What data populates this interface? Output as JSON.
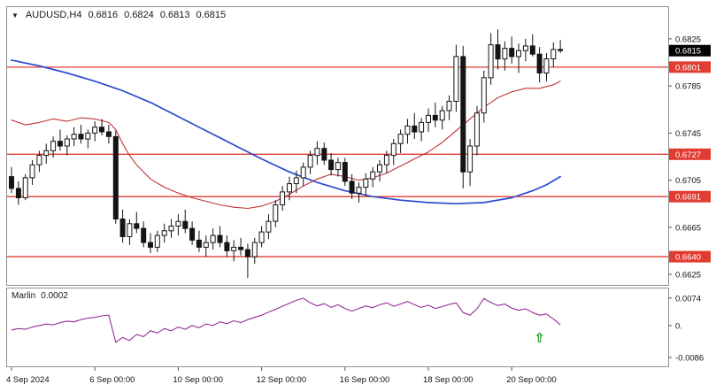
{
  "colors": {
    "bg": "#ffffff",
    "panel_border": "#8f8f8f",
    "bull": "#ffffff",
    "bear": "#141414",
    "wick": "#141414",
    "ma_fast": "#c03434",
    "ma_slow": "#2b4bd0",
    "hline": "#e03c31",
    "indicator": "#952d95",
    "price_box_black": "#000000",
    "price_box_red": "#e03c31",
    "axis_text": "#111111",
    "arrow": "#2fa12f"
  },
  "header": {
    "symbol": "AUDUSD,H4",
    "open": "0.6816",
    "high": "0.6824",
    "low": "0.6813",
    "close": "0.6815",
    "collapse_glyph": "▼"
  },
  "indicator_label": {
    "name": "Marlin",
    "value": "0.0002"
  },
  "chart_data": {
    "type": "candlestick",
    "symbol": "AUDUSD",
    "timeframe": "H4",
    "price_range": [
      0.6616,
      0.6852
    ],
    "grid": "off",
    "hlines": [
      0.6801,
      0.6727,
      0.6691,
      0.664
    ],
    "price_axis": {
      "plain": [
        "0.6825",
        "0.6785",
        "0.6745",
        "0.6705",
        "0.6665",
        "0.6625"
      ],
      "red_boxed": [
        "0.6801",
        "0.6727",
        "0.6691",
        "0.6640"
      ],
      "black_boxed": [
        "0.6815"
      ]
    },
    "x_axis": {
      "labels": [
        {
          "i": 0,
          "text": "4 Sep 2024"
        },
        {
          "i": 12,
          "text": "6 Sep 00:00"
        },
        {
          "i": 24,
          "text": "10 Sep 00:00"
        },
        {
          "i": 36,
          "text": "12 Sep 00:00"
        },
        {
          "i": 48,
          "text": "16 Sep 00:00"
        },
        {
          "i": 60,
          "text": "18 Sep 00:00"
        },
        {
          "i": 72,
          "text": "20 Sep 00:00"
        }
      ]
    },
    "candles": [
      [
        0.6708,
        0.6716,
        0.6694,
        0.6698
      ],
      [
        0.6698,
        0.6704,
        0.6684,
        0.669
      ],
      [
        0.669,
        0.671,
        0.6688,
        0.6707
      ],
      [
        0.6707,
        0.6722,
        0.6701,
        0.6718
      ],
      [
        0.6718,
        0.673,
        0.6712,
        0.6726
      ],
      [
        0.6726,
        0.6736,
        0.6719,
        0.673
      ],
      [
        0.673,
        0.6742,
        0.6724,
        0.6738
      ],
      [
        0.6738,
        0.6748,
        0.673,
        0.6734
      ],
      [
        0.6734,
        0.6743,
        0.6726,
        0.674
      ],
      [
        0.674,
        0.675,
        0.6734,
        0.6744
      ],
      [
        0.6744,
        0.6752,
        0.6736,
        0.674
      ],
      [
        0.674,
        0.6748,
        0.6732,
        0.6745
      ],
      [
        0.6745,
        0.6755,
        0.6738,
        0.675
      ],
      [
        0.675,
        0.6757,
        0.6743,
        0.6746
      ],
      [
        0.6746,
        0.6752,
        0.6736,
        0.6742
      ],
      [
        0.6742,
        0.6747,
        0.6668,
        0.6672
      ],
      [
        0.6672,
        0.668,
        0.6652,
        0.6657
      ],
      [
        0.6657,
        0.6672,
        0.665,
        0.6668
      ],
      [
        0.6668,
        0.6678,
        0.666,
        0.6664
      ],
      [
        0.6664,
        0.667,
        0.6648,
        0.6652
      ],
      [
        0.6652,
        0.666,
        0.6643,
        0.6648
      ],
      [
        0.6648,
        0.6662,
        0.6644,
        0.6658
      ],
      [
        0.6658,
        0.6668,
        0.6652,
        0.6662
      ],
      [
        0.6662,
        0.6672,
        0.6656,
        0.6666
      ],
      [
        0.6666,
        0.6676,
        0.6658,
        0.667
      ],
      [
        0.667,
        0.668,
        0.666,
        0.6664
      ],
      [
        0.6664,
        0.667,
        0.665,
        0.6654
      ],
      [
        0.6654,
        0.6662,
        0.6644,
        0.6648
      ],
      [
        0.6648,
        0.6658,
        0.664,
        0.6652
      ],
      [
        0.6652,
        0.6664,
        0.6646,
        0.6658
      ],
      [
        0.6658,
        0.6666,
        0.6648,
        0.6652
      ],
      [
        0.6652,
        0.6658,
        0.664,
        0.6645
      ],
      [
        0.6645,
        0.6654,
        0.6636,
        0.6648
      ],
      [
        0.6648,
        0.6656,
        0.6641,
        0.6646
      ],
      [
        0.6646,
        0.6651,
        0.6622,
        0.664
      ],
      [
        0.664,
        0.6656,
        0.6634,
        0.6652
      ],
      [
        0.6652,
        0.6666,
        0.6648,
        0.6661
      ],
      [
        0.6661,
        0.6676,
        0.6655,
        0.667
      ],
      [
        0.667,
        0.6688,
        0.6665,
        0.6684
      ],
      [
        0.6684,
        0.67,
        0.6679,
        0.6695
      ],
      [
        0.6695,
        0.6708,
        0.6688,
        0.6702
      ],
      [
        0.6702,
        0.6713,
        0.6694,
        0.6707
      ],
      [
        0.6707,
        0.672,
        0.67,
        0.6716
      ],
      [
        0.6716,
        0.673,
        0.671,
        0.6726
      ],
      [
        0.6726,
        0.6738,
        0.6718,
        0.6732
      ],
      [
        0.6732,
        0.6737,
        0.6718,
        0.6722
      ],
      [
        0.6722,
        0.6728,
        0.6709,
        0.6714
      ],
      [
        0.6714,
        0.6724,
        0.6708,
        0.672
      ],
      [
        0.672,
        0.6724,
        0.67,
        0.6704
      ],
      [
        0.6704,
        0.671,
        0.6689,
        0.6694
      ],
      [
        0.6694,
        0.6703,
        0.6686,
        0.6699
      ],
      [
        0.6699,
        0.6711,
        0.6692,
        0.6706
      ],
      [
        0.6706,
        0.6716,
        0.6699,
        0.6712
      ],
      [
        0.6712,
        0.6722,
        0.6704,
        0.6718
      ],
      [
        0.6718,
        0.673,
        0.6711,
        0.6726
      ],
      [
        0.6726,
        0.674,
        0.6718,
        0.6736
      ],
      [
        0.6736,
        0.6748,
        0.6728,
        0.6744
      ],
      [
        0.6744,
        0.6757,
        0.6736,
        0.6751
      ],
      [
        0.6751,
        0.6762,
        0.674,
        0.6746
      ],
      [
        0.6746,
        0.6758,
        0.6738,
        0.6754
      ],
      [
        0.6754,
        0.6766,
        0.6746,
        0.676
      ],
      [
        0.676,
        0.6771,
        0.675,
        0.6756
      ],
      [
        0.6756,
        0.6768,
        0.6748,
        0.6764
      ],
      [
        0.6764,
        0.6777,
        0.6756,
        0.6772
      ],
      [
        0.6772,
        0.682,
        0.6763,
        0.681
      ],
      [
        0.681,
        0.6819,
        0.6698,
        0.6712
      ],
      [
        0.6712,
        0.674,
        0.67,
        0.6734
      ],
      [
        0.6734,
        0.6768,
        0.6726,
        0.6762
      ],
      [
        0.6762,
        0.6798,
        0.6754,
        0.6792
      ],
      [
        0.6792,
        0.683,
        0.6786,
        0.682
      ],
      [
        0.682,
        0.6833,
        0.6799,
        0.6808
      ],
      [
        0.6808,
        0.6823,
        0.6798,
        0.6817
      ],
      [
        0.6817,
        0.6827,
        0.6804,
        0.681
      ],
      [
        0.681,
        0.6821,
        0.6796,
        0.6815
      ],
      [
        0.6815,
        0.6825,
        0.6806,
        0.6819
      ],
      [
        0.6819,
        0.6829,
        0.681,
        0.6812
      ],
      [
        0.6812,
        0.6818,
        0.6788,
        0.6796
      ],
      [
        0.6796,
        0.6813,
        0.6789,
        0.6808
      ],
      [
        0.6808,
        0.6822,
        0.6801,
        0.6816
      ],
      [
        0.6816,
        0.6824,
        0.6813,
        0.6815
      ]
    ],
    "overlays": {
      "ma_slow": {
        "color_role": "ma_slow",
        "points": [
          [
            0,
            0.6807
          ],
          [
            4,
            0.6802
          ],
          [
            8,
            0.6796
          ],
          [
            12,
            0.6789
          ],
          [
            16,
            0.6781
          ],
          [
            20,
            0.6771
          ],
          [
            24,
            0.6759
          ],
          [
            28,
            0.6747
          ],
          [
            32,
            0.6735
          ],
          [
            36,
            0.6723
          ],
          [
            40,
            0.6712
          ],
          [
            44,
            0.6703
          ],
          [
            48,
            0.6696
          ],
          [
            52,
            0.6691
          ],
          [
            56,
            0.6688
          ],
          [
            60,
            0.6686
          ],
          [
            64,
            0.6685
          ],
          [
            68,
            0.6686
          ],
          [
            72,
            0.669
          ],
          [
            75,
            0.6696
          ],
          [
            77,
            0.6701
          ],
          [
            79,
            0.6708
          ]
        ]
      },
      "ma_fast": {
        "color_role": "ma_fast",
        "points": [
          [
            0,
            0.6756
          ],
          [
            2,
            0.6752
          ],
          [
            4,
            0.6754
          ],
          [
            6,
            0.6757
          ],
          [
            8,
            0.6755
          ],
          [
            10,
            0.6758
          ],
          [
            12,
            0.6757
          ],
          [
            14,
            0.6754
          ],
          [
            15,
            0.6748
          ],
          [
            16,
            0.6736
          ],
          [
            17,
            0.6726
          ],
          [
            18,
            0.6718
          ],
          [
            20,
            0.6706
          ],
          [
            22,
            0.6699
          ],
          [
            24,
            0.6694
          ],
          [
            26,
            0.669
          ],
          [
            28,
            0.6687
          ],
          [
            30,
            0.6684
          ],
          [
            32,
            0.6682
          ],
          [
            34,
            0.6681
          ],
          [
            36,
            0.6683
          ],
          [
            38,
            0.6687
          ],
          [
            40,
            0.6693
          ],
          [
            42,
            0.67
          ],
          [
            44,
            0.6706
          ],
          [
            46,
            0.671
          ],
          [
            48,
            0.6708
          ],
          [
            50,
            0.6705
          ],
          [
            52,
            0.6707
          ],
          [
            54,
            0.6711
          ],
          [
            56,
            0.6717
          ],
          [
            58,
            0.6723
          ],
          [
            60,
            0.6729
          ],
          [
            62,
            0.6737
          ],
          [
            64,
            0.6747
          ],
          [
            66,
            0.6757
          ],
          [
            68,
            0.6767
          ],
          [
            70,
            0.6775
          ],
          [
            72,
            0.678
          ],
          [
            74,
            0.6783
          ],
          [
            76,
            0.6783
          ],
          [
            78,
            0.6786
          ],
          [
            79,
            0.6789
          ]
        ]
      }
    },
    "indicator": {
      "name": "Marlin",
      "current_value": 0.0002,
      "range": [
        -0.011,
        0.01
      ],
      "axis": [
        {
          "label": "0.0074",
          "value": 0.0074
        },
        {
          "label": "0.",
          "value": 0
        },
        {
          "label": "-0.0086",
          "value": -0.0086
        }
      ],
      "values": [
        -0.0012,
        -0.0008,
        -0.001,
        -0.0004,
        0.0,
        0.0004,
        0.0002,
        0.0008,
        0.0012,
        0.001,
        0.0016,
        0.002,
        0.0022,
        0.0026,
        0.0028,
        -0.0045,
        -0.0032,
        -0.004,
        -0.0024,
        -0.003,
        -0.0014,
        -0.002,
        -0.0008,
        -0.0014,
        -0.0004,
        -0.001,
        0.0,
        -0.0006,
        0.0004,
        0.0,
        0.001,
        0.0005,
        0.0013,
        0.0008,
        0.0016,
        0.0022,
        0.0028,
        0.0036,
        0.0044,
        0.0052,
        0.006,
        0.0068,
        0.0074,
        0.0061,
        0.0053,
        0.0059,
        0.0049,
        0.0056,
        0.0046,
        0.0039,
        0.0046,
        0.0053,
        0.0048,
        0.0056,
        0.0061,
        0.0052,
        0.0058,
        0.0065,
        0.0056,
        0.0049,
        0.0055,
        0.0046,
        0.0051,
        0.0057,
        0.0061,
        0.0035,
        0.0028,
        0.0045,
        0.0073,
        0.0062,
        0.0054,
        0.0058,
        0.0047,
        0.0041,
        0.0045,
        0.0035,
        0.0028,
        0.0031,
        0.0018,
        0.0002
      ],
      "marker": {
        "type": "up-arrow",
        "glyph": "⇧",
        "i": 76,
        "value": -0.0033
      }
    }
  }
}
